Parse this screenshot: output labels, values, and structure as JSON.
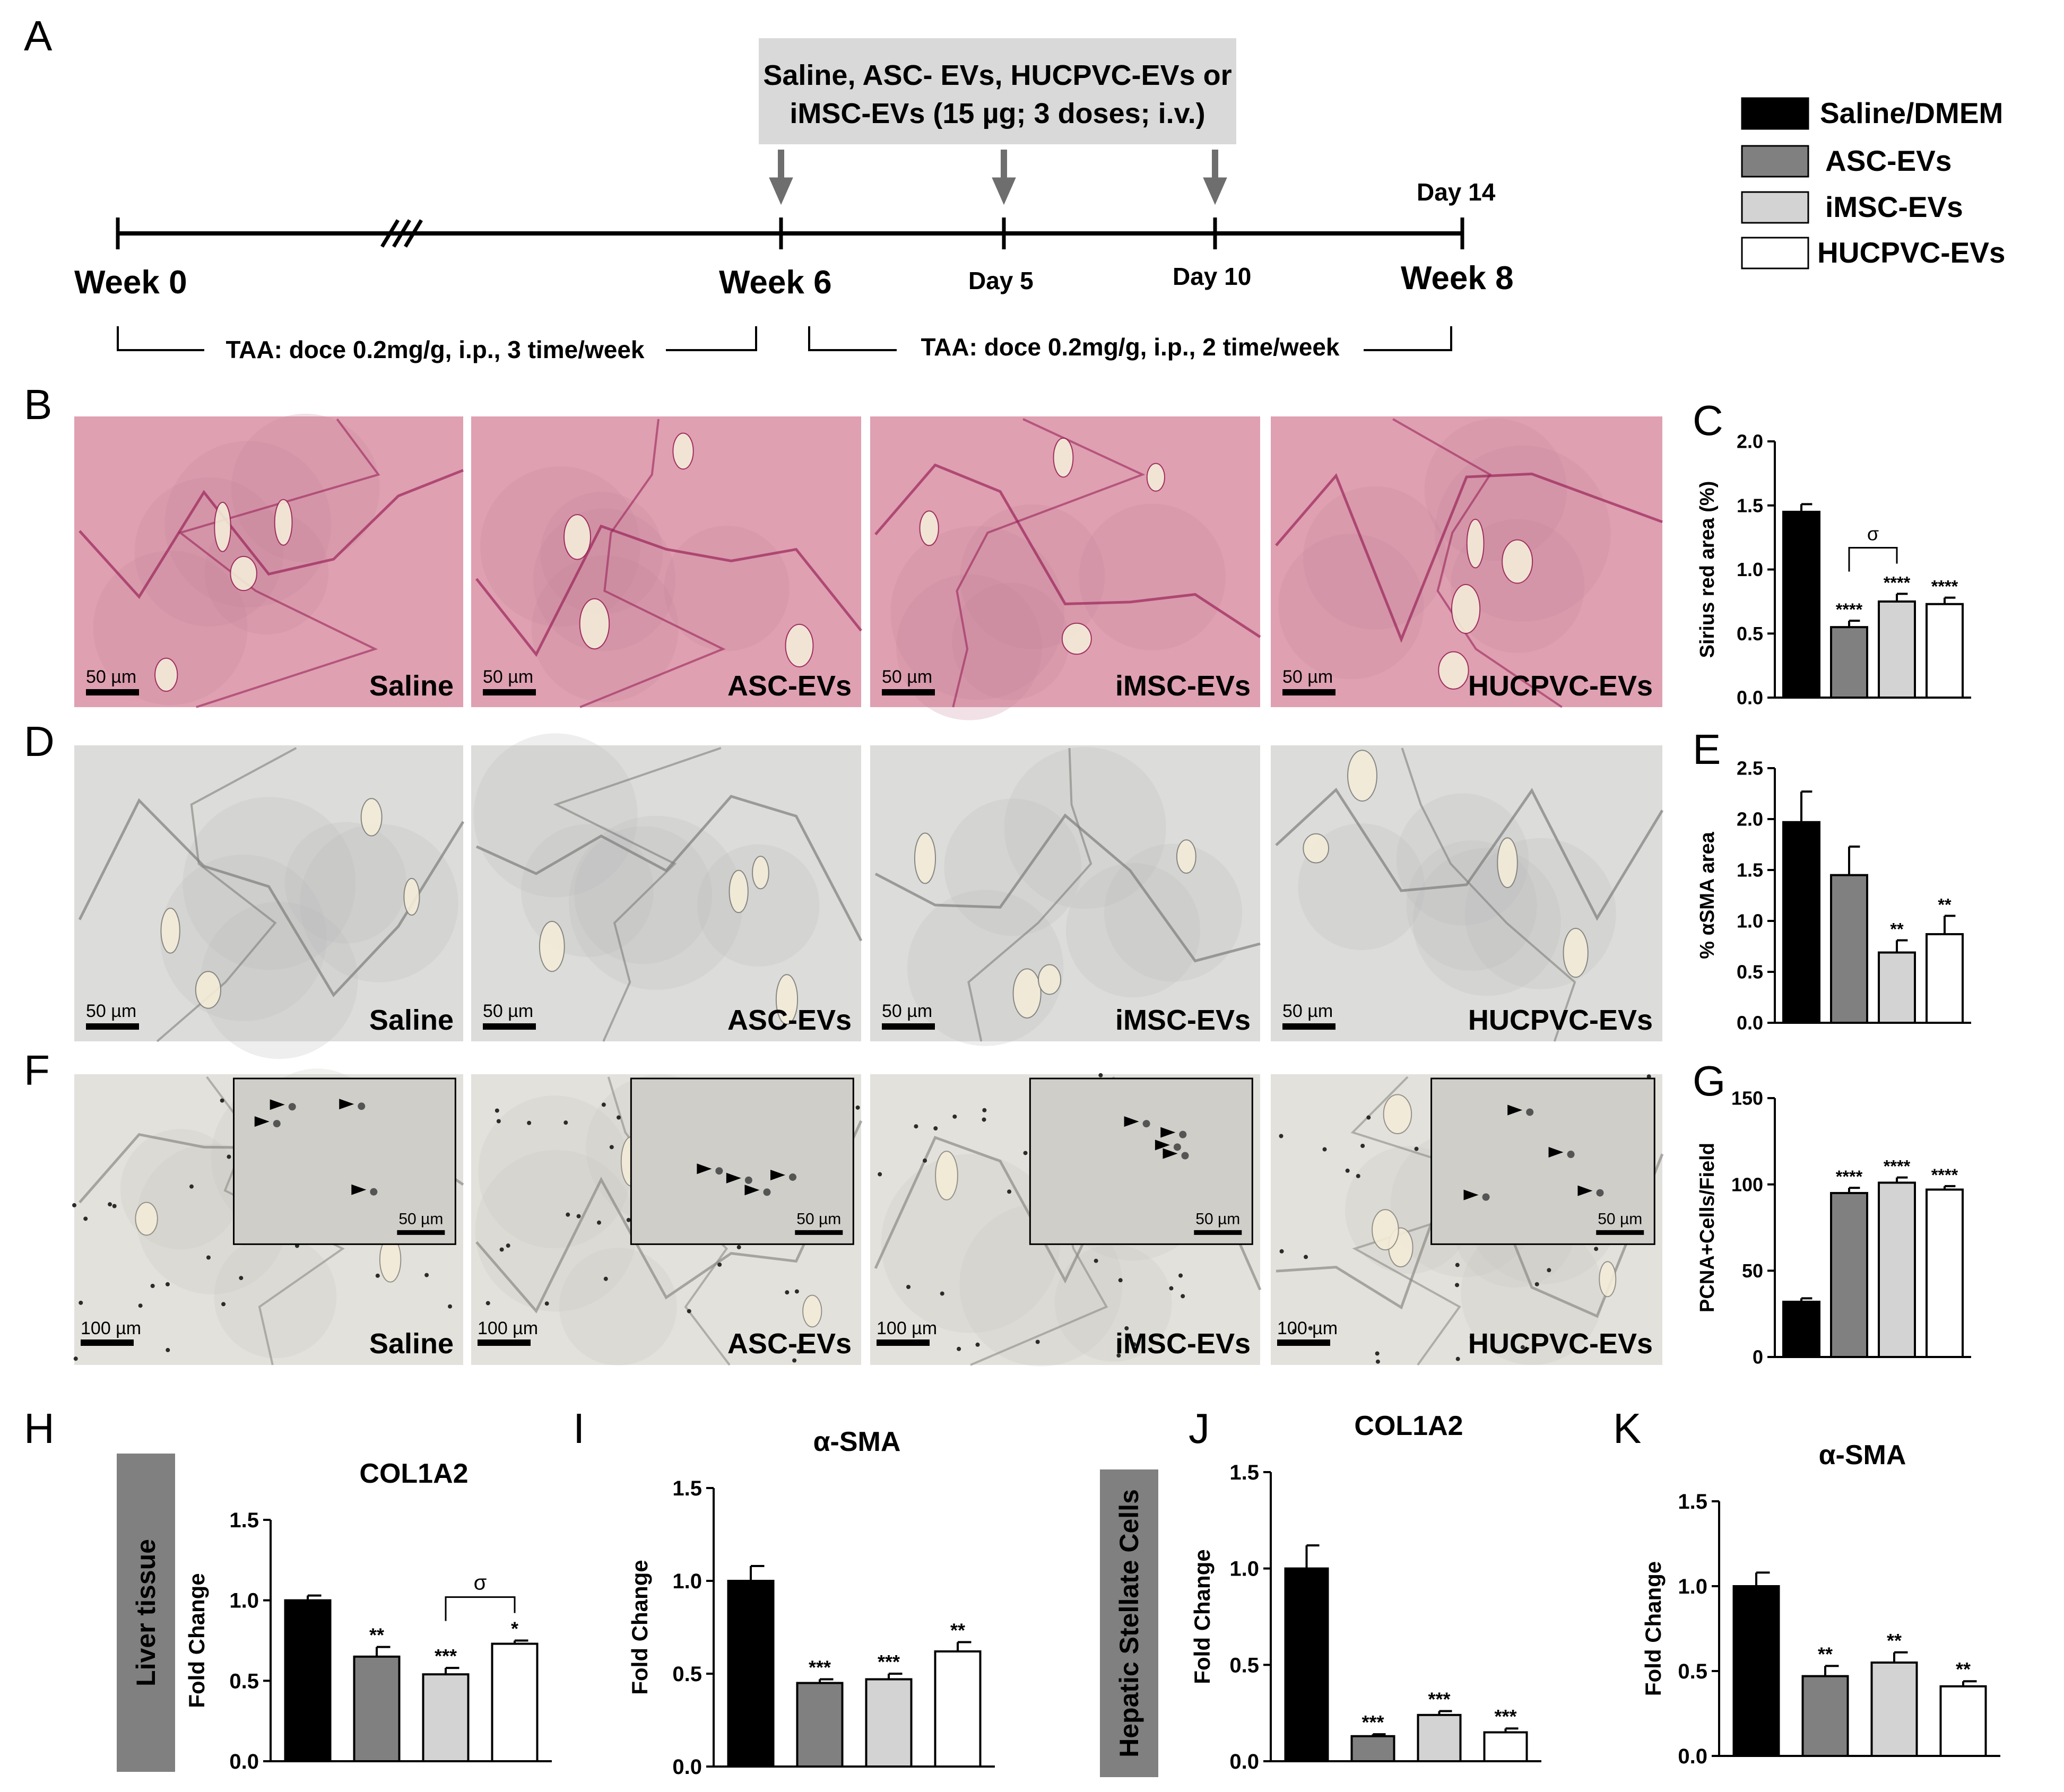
{
  "panel_letters": [
    "A",
    "B",
    "C",
    "D",
    "E",
    "F",
    "G",
    "H",
    "I",
    "J",
    "K"
  ],
  "timeline": {
    "treatment_box": [
      "Saline, ASC- EVs, HUCPVC-EVs or",
      "iMSC-EVs (15 µg; 3 doses; i.v.)"
    ],
    "week0": "Week 0",
    "week6": "Week 6",
    "week8": "Week 8",
    "day5": "Day 5",
    "day10": "Day 10",
    "day14": "Day 14",
    "taa1": "TAA: doce 0.2mg/g, i.p., 3 time/week",
    "taa2": "TAA: doce 0.2mg/g, i.p., 2 time/week"
  },
  "legend": [
    {
      "label": "Saline/DMEM",
      "color": "#000000"
    },
    {
      "label": "ASC-EVs",
      "color": "#808080"
    },
    {
      "label": "iMSC-EVs",
      "color": "#d3d3d3"
    },
    {
      "label": "HUCPVC-EVs",
      "color": "#ffffff"
    }
  ],
  "micrographs": {
    "groups": [
      "Saline",
      "ASC-EVs",
      "iMSC-EVs",
      "HUCPVC-EVs"
    ],
    "scale_50": "50 µm",
    "scale_100": "100 µm",
    "rows": [
      {
        "id": "B",
        "stain": "sirius-red",
        "bg": "#dfa0b2",
        "tissue": "#c9879a",
        "fiber": "#9a2358"
      },
      {
        "id": "D",
        "stain": "alpha-sma",
        "bg": "#dcdcda",
        "tissue": "#bdbdbb",
        "fiber": "#7e7e7c"
      },
      {
        "id": "F",
        "stain": "pcna",
        "bg": "#e2e1db",
        "tissue": "#c9c8c0",
        "fiber": "#8c8a84"
      }
    ]
  },
  "charts": {
    "C": {
      "type": "bar",
      "ylabel": "Sirius red area (%)",
      "ylim": [
        0,
        2.0
      ],
      "ticks": [
        "0.0",
        "0.5",
        "1.0",
        "1.5",
        "2.0"
      ],
      "values": [
        1.45,
        0.55,
        0.75,
        0.73
      ],
      "errors": [
        0.06,
        0.05,
        0.06,
        0.05
      ],
      "marks": [
        "",
        "****",
        "****",
        "****"
      ],
      "bracket": {
        "from": 1,
        "to": 2,
        "label": "σ"
      }
    },
    "E": {
      "type": "bar",
      "ylabel": "% αSMA area",
      "ylim": [
        0,
        2.5
      ],
      "ticks": [
        "0.0",
        "0.5",
        "1.0",
        "1.5",
        "2.0",
        "2.5"
      ],
      "values": [
        1.97,
        1.45,
        0.69,
        0.87
      ],
      "errors": [
        0.3,
        0.28,
        0.12,
        0.18
      ],
      "marks": [
        "",
        "",
        "**",
        "**"
      ]
    },
    "G": {
      "type": "bar",
      "ylabel": "PCNA+Cells/Field",
      "ylim": [
        0,
        150
      ],
      "ticks": [
        "0",
        "50",
        "100",
        "150"
      ],
      "values": [
        32,
        95,
        101,
        97
      ],
      "errors": [
        2,
        3,
        3,
        2
      ],
      "marks": [
        "",
        "****",
        "****",
        "****"
      ]
    },
    "H": {
      "type": "bar",
      "title": "COL1A2",
      "ylabel": "Fold Change",
      "ylim": [
        0,
        1.5
      ],
      "ticks": [
        "0.0",
        "0.5",
        "1.0",
        "1.5"
      ],
      "values": [
        1.0,
        0.65,
        0.54,
        0.73
      ],
      "errors": [
        0.03,
        0.06,
        0.04,
        0.02
      ],
      "marks": [
        "",
        "**",
        "***",
        "*"
      ],
      "bracket": {
        "from": 2,
        "to": 3,
        "label": "σ"
      }
    },
    "I": {
      "type": "bar",
      "title": "α-SMA",
      "ylabel": "Fold Change",
      "ylim": [
        0,
        1.5
      ],
      "ticks": [
        "0.0",
        "0.5",
        "1.0",
        "1.5"
      ],
      "values": [
        1.0,
        0.45,
        0.47,
        0.62
      ],
      "errors": [
        0.08,
        0.02,
        0.03,
        0.05
      ],
      "marks": [
        "",
        "***",
        "***",
        "**"
      ]
    },
    "J": {
      "type": "bar",
      "title": "COL1A2",
      "ylabel": "Fold Change",
      "ylim": [
        0,
        1.5
      ],
      "ticks": [
        "0.0",
        "0.5",
        "1.0",
        "1.5"
      ],
      "values": [
        1.0,
        0.13,
        0.24,
        0.15
      ],
      "errors": [
        0.12,
        0.01,
        0.02,
        0.02
      ],
      "marks": [
        "",
        "***",
        "***",
        "***"
      ]
    },
    "K": {
      "type": "bar",
      "title": "α-SMA",
      "ylabel": "Fold Change",
      "ylim": [
        0,
        1.5
      ],
      "ticks": [
        "0.0",
        "0.5",
        "1.0",
        "1.5"
      ],
      "values": [
        1.0,
        0.47,
        0.55,
        0.41
      ],
      "errors": [
        0.08,
        0.06,
        0.06,
        0.03
      ],
      "marks": [
        "",
        "**",
        "**",
        "**"
      ]
    }
  },
  "chart_data": [
    {
      "type": "bar",
      "panel": "C",
      "categories": [
        "Saline/DMEM",
        "ASC-EVs",
        "iMSC-EVs",
        "HUCPVC-EVs"
      ],
      "values": [
        1.45,
        0.55,
        0.75,
        0.73
      ],
      "ylabel": "Sirius red area (%)",
      "ylim": [
        0,
        2.0
      ]
    },
    {
      "type": "bar",
      "panel": "E",
      "categories": [
        "Saline/DMEM",
        "ASC-EVs",
        "iMSC-EVs",
        "HUCPVC-EVs"
      ],
      "values": [
        1.97,
        1.45,
        0.69,
        0.87
      ],
      "ylabel": "% αSMA area",
      "ylim": [
        0,
        2.5
      ]
    },
    {
      "type": "bar",
      "panel": "G",
      "categories": [
        "Saline/DMEM",
        "ASC-EVs",
        "iMSC-EVs",
        "HUCPVC-EVs"
      ],
      "values": [
        32,
        95,
        101,
        97
      ],
      "ylabel": "PCNA+Cells/Field",
      "ylim": [
        0,
        150
      ]
    },
    {
      "type": "bar",
      "panel": "H",
      "title": "COL1A2",
      "categories": [
        "Saline/DMEM",
        "ASC-EVs",
        "iMSC-EVs",
        "HUCPVC-EVs"
      ],
      "values": [
        1.0,
        0.65,
        0.54,
        0.73
      ],
      "ylabel": "Fold Change",
      "ylim": [
        0,
        1.5
      ]
    },
    {
      "type": "bar",
      "panel": "I",
      "title": "α-SMA",
      "categories": [
        "Saline/DMEM",
        "ASC-EVs",
        "iMSC-EVs",
        "HUCPVC-EVs"
      ],
      "values": [
        1.0,
        0.45,
        0.47,
        0.62
      ],
      "ylabel": "Fold Change",
      "ylim": [
        0,
        1.5
      ]
    },
    {
      "type": "bar",
      "panel": "J",
      "title": "COL1A2",
      "categories": [
        "Saline/DMEM",
        "ASC-EVs",
        "iMSC-EVs",
        "HUCPVC-EVs"
      ],
      "values": [
        1.0,
        0.13,
        0.24,
        0.15
      ],
      "ylabel": "Fold Change",
      "ylim": [
        0,
        1.5
      ]
    },
    {
      "type": "bar",
      "panel": "K",
      "title": "α-SMA",
      "categories": [
        "Saline/DMEM",
        "ASC-EVs",
        "iMSC-EVs",
        "HUCPVC-EVs"
      ],
      "values": [
        1.0,
        0.47,
        0.55,
        0.41
      ],
      "ylabel": "Fold Change",
      "ylim": [
        0,
        1.5
      ]
    }
  ],
  "side_labels": {
    "liver": "Liver tissue",
    "hsc": "Hepatic Stellate Cells"
  }
}
